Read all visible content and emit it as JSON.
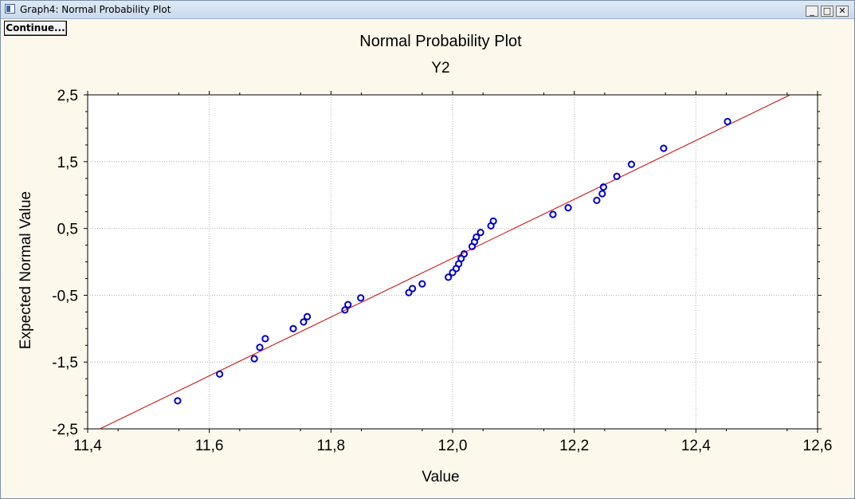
{
  "window": {
    "title": "Graph4: Normal Probability Plot",
    "minimize_glyph": "_",
    "maximize_glyph": "□",
    "close_glyph": "✕"
  },
  "toolbar": {
    "continue_label": "Continue..."
  },
  "chart_data": {
    "type": "scatter",
    "title": "Normal Probability Plot",
    "subtitle": "Y2",
    "xlabel": "Value",
    "ylabel": "Expected Normal Value",
    "xlim": [
      11.4,
      12.6
    ],
    "ylim": [
      -2.5,
      2.5
    ],
    "x_ticks": [
      11.4,
      11.6,
      11.8,
      12.0,
      12.2,
      12.4,
      12.6
    ],
    "x_tick_labels": [
      "11,4",
      "11,6",
      "11,8",
      "12,0",
      "12,2",
      "12,4",
      "12,6"
    ],
    "y_ticks": [
      2.5,
      1.5,
      0.5,
      -0.5,
      -1.5,
      -2.5
    ],
    "y_tick_labels": [
      "2,5",
      "1,5",
      "0,5",
      "-0,5",
      "-1,5",
      "-2,5"
    ],
    "grid": true,
    "point_color": "#0000cc",
    "line_color": "#cc0000",
    "points": [
      [
        11.548,
        -2.08
      ],
      [
        11.617,
        -1.68
      ],
      [
        11.674,
        -1.45
      ],
      [
        11.683,
        -1.28
      ],
      [
        11.692,
        -1.15
      ],
      [
        11.738,
        -1.0
      ],
      [
        11.755,
        -0.9
      ],
      [
        11.761,
        -0.82
      ],
      [
        11.823,
        -0.72
      ],
      [
        11.828,
        -0.64
      ],
      [
        11.849,
        -0.54
      ],
      [
        11.928,
        -0.46
      ],
      [
        11.934,
        -0.4
      ],
      [
        11.95,
        -0.33
      ],
      [
        11.993,
        -0.23
      ],
      [
        12.0,
        -0.16
      ],
      [
        12.006,
        -0.1
      ],
      [
        12.01,
        -0.03
      ],
      [
        12.014,
        0.05
      ],
      [
        12.019,
        0.12
      ],
      [
        12.032,
        0.23
      ],
      [
        12.036,
        0.3
      ],
      [
        12.039,
        0.37
      ],
      [
        12.046,
        0.44
      ],
      [
        12.063,
        0.54
      ],
      [
        12.067,
        0.61
      ],
      [
        12.165,
        0.71
      ],
      [
        12.19,
        0.81
      ],
      [
        12.237,
        0.92
      ],
      [
        12.246,
        1.02
      ],
      [
        12.248,
        1.12
      ],
      [
        12.27,
        1.28
      ],
      [
        12.294,
        1.46
      ],
      [
        12.347,
        1.7
      ],
      [
        12.452,
        2.1
      ]
    ],
    "fit_line": [
      [
        11.42,
        -2.5
      ],
      [
        12.555,
        2.5
      ]
    ]
  }
}
